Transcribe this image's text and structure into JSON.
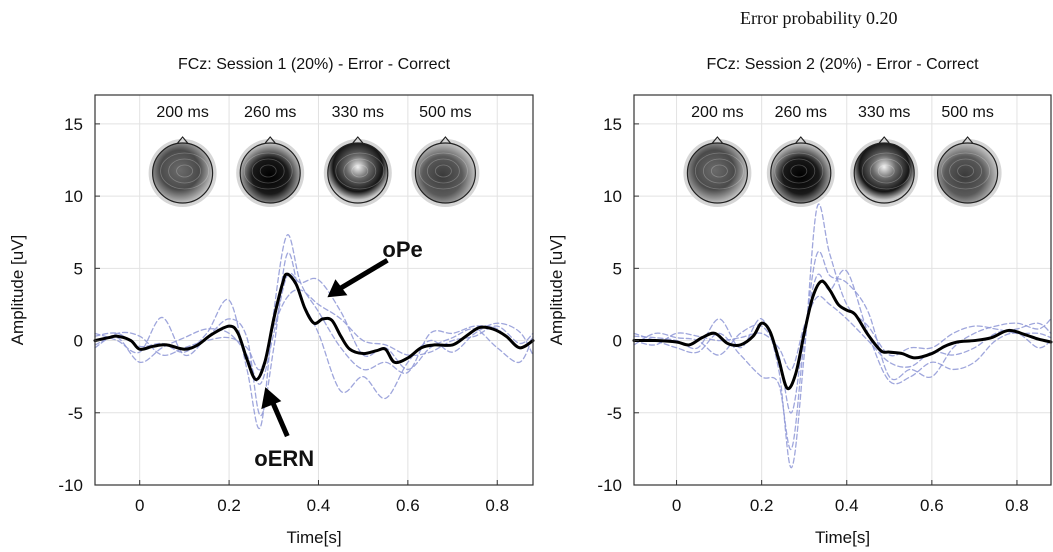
{
  "figure_title": "Error probability 0.20",
  "chart_data": [
    {
      "type": "line",
      "title": "FCz: Session 1 (20%) - Error - Correct",
      "xlabel": "Time[s]",
      "ylabel": "Amplitude [uV]",
      "xlim": [
        -0.1,
        0.88
      ],
      "ylim": [
        -10,
        17
      ],
      "xticks": [
        0,
        0.2,
        0.4,
        0.6,
        0.8
      ],
      "xtick_labels": [
        "0",
        "0.2",
        "0.4",
        "0.6",
        "0.8"
      ],
      "yticks": [
        -10,
        -5,
        0,
        5,
        10,
        15
      ],
      "ytick_labels": [
        "-10",
        "-5",
        "0",
        "5",
        "10",
        "15"
      ],
      "grid": true,
      "topomaps": [
        {
          "label": "200 ms",
          "time": 0.2
        },
        {
          "label": "260 ms",
          "time": 0.26
        },
        {
          "label": "330 ms",
          "time": 0.33
        },
        {
          "label": "500 ms",
          "time": 0.5
        }
      ],
      "annotations": [
        {
          "text": "oPe",
          "x": 0.42,
          "y": 3
        },
        {
          "text": "oERN",
          "x": 0.29,
          "y": -3.5
        }
      ],
      "series": [
        {
          "role": "average",
          "color": "#000000",
          "dashed": false,
          "x": [
            -0.1,
            -0.07,
            -0.05,
            -0.02,
            0,
            0.03,
            0.06,
            0.1,
            0.13,
            0.16,
            0.2,
            0.22,
            0.24,
            0.26,
            0.28,
            0.3,
            0.32,
            0.33,
            0.35,
            0.37,
            0.39,
            0.41,
            0.43,
            0.45,
            0.47,
            0.5,
            0.53,
            0.55,
            0.57,
            0.6,
            0.63,
            0.66,
            0.7,
            0.73,
            0.76,
            0.79,
            0.82,
            0.85,
            0.88
          ],
          "y": [
            0,
            0.2,
            0.3,
            0,
            -0.6,
            -0.4,
            -0.3,
            -0.6,
            -0.3,
            0.4,
            1.0,
            0.5,
            -1.3,
            -2.7,
            -1.5,
            1.5,
            4.0,
            4.6,
            3.9,
            2.2,
            1.2,
            1.5,
            1.4,
            0.3,
            -0.6,
            -0.9,
            -0.7,
            -0.6,
            -1.5,
            -1.2,
            -0.5,
            -0.3,
            -0.3,
            0.3,
            0.9,
            0.8,
            0.3,
            -0.5,
            0
          ]
        },
        {
          "role": "single-session",
          "color": "#8e96d6",
          "dashed": true,
          "x": [
            -0.1,
            -0.05,
            0,
            0.05,
            0.1,
            0.15,
            0.2,
            0.24,
            0.27,
            0.3,
            0.33,
            0.36,
            0.4,
            0.45,
            0.5,
            0.55,
            0.6,
            0.65,
            0.7,
            0.75,
            0.8,
            0.85,
            0.88
          ],
          "y": [
            0.3,
            0.5,
            -0.4,
            -0.2,
            -0.8,
            0.5,
            2.8,
            -2.0,
            -6.0,
            2.0,
            7.3,
            4.0,
            2.0,
            -0.5,
            -2.0,
            -1.5,
            -2.2,
            0.5,
            0.5,
            1.0,
            0.8,
            -0.5,
            0.2
          ]
        },
        {
          "role": "single-session",
          "color": "#8e96d6",
          "dashed": true,
          "x": [
            -0.1,
            -0.05,
            0,
            0.05,
            0.1,
            0.15,
            0.2,
            0.24,
            0.27,
            0.3,
            0.33,
            0.36,
            0.4,
            0.45,
            0.5,
            0.55,
            0.6,
            0.65,
            0.7,
            0.75,
            0.8,
            0.85,
            0.88
          ],
          "y": [
            -0.3,
            0.2,
            -1.5,
            -0.5,
            0.2,
            0.8,
            0.5,
            -1.0,
            -3.0,
            0.5,
            4.5,
            4.0,
            4.2,
            2.0,
            -1.0,
            -0.5,
            -2.0,
            -0.5,
            0.2,
            0.8,
            -0.5,
            -1.5,
            0.3
          ]
        },
        {
          "role": "single-session",
          "color": "#8e96d6",
          "dashed": true,
          "x": [
            -0.1,
            -0.05,
            0,
            0.05,
            0.1,
            0.15,
            0.2,
            0.24,
            0.27,
            0.3,
            0.33,
            0.36,
            0.4,
            0.45,
            0.5,
            0.55,
            0.6,
            0.65,
            0.7,
            0.75,
            0.8,
            0.85,
            0.88
          ],
          "y": [
            0.5,
            0.0,
            -0.8,
            1.6,
            -1.0,
            0.2,
            1.5,
            0.2,
            -5.2,
            -0.5,
            6.0,
            3.0,
            0.5,
            -3.5,
            -2.5,
            -4.0,
            -1.5,
            0.0,
            -0.8,
            0.5,
            1.2,
            0.6,
            -1.0
          ]
        },
        {
          "role": "single-session",
          "color": "#8e96d6",
          "dashed": true,
          "x": [
            -0.1,
            -0.05,
            0,
            0.05,
            0.1,
            0.15,
            0.2,
            0.24,
            0.27,
            0.3,
            0.33,
            0.36,
            0.4,
            0.45,
            0.5,
            0.55,
            0.6,
            0.65,
            0.7,
            0.75,
            0.8,
            0.85,
            0.88
          ],
          "y": [
            -0.5,
            0.5,
            0.3,
            -1.0,
            -0.5,
            0.0,
            0.2,
            -0.5,
            -2.0,
            1.0,
            3.0,
            3.5,
            2.5,
            1.5,
            0.0,
            -0.3,
            -1.0,
            -0.8,
            0.0,
            0.3,
            1.0,
            -0.2,
            0.5
          ]
        }
      ]
    },
    {
      "type": "line",
      "title": "FCz: Session 2 (20%) - Error - Correct",
      "xlabel": "Time[s]",
      "ylabel": "Amplitude [uV]",
      "xlim": [
        -0.1,
        0.88
      ],
      "ylim": [
        -10,
        17
      ],
      "xticks": [
        0,
        0.2,
        0.4,
        0.6,
        0.8
      ],
      "xtick_labels": [
        "0",
        "0.2",
        "0.4",
        "0.6",
        "0.8"
      ],
      "yticks": [
        -10,
        -5,
        0,
        5,
        10,
        15
      ],
      "ytick_labels": [
        "-10",
        "-5",
        "0",
        "5",
        "10",
        "15"
      ],
      "grid": true,
      "topomaps": [
        {
          "label": "200 ms",
          "time": 0.2
        },
        {
          "label": "260 ms",
          "time": 0.26
        },
        {
          "label": "330 ms",
          "time": 0.33
        },
        {
          "label": "500 ms",
          "time": 0.5
        }
      ],
      "annotations": [],
      "series": [
        {
          "role": "average",
          "color": "#000000",
          "dashed": false,
          "x": [
            -0.1,
            -0.05,
            0,
            0.03,
            0.06,
            0.09,
            0.12,
            0.15,
            0.18,
            0.2,
            0.22,
            0.24,
            0.26,
            0.28,
            0.3,
            0.32,
            0.34,
            0.36,
            0.38,
            0.4,
            0.42,
            0.45,
            0.48,
            0.5,
            0.53,
            0.56,
            0.6,
            0.63,
            0.66,
            0.7,
            0.74,
            0.78,
            0.82,
            0.85,
            0.88
          ],
          "y": [
            0,
            0,
            -0.1,
            -0.3,
            0.2,
            0.5,
            -0.2,
            -0.3,
            0.3,
            1.2,
            0.6,
            -1.3,
            -3.3,
            -2.3,
            0.5,
            3.0,
            4.1,
            3.5,
            2.5,
            2.1,
            1.8,
            0.4,
            -0.7,
            -0.8,
            -0.9,
            -1.2,
            -0.9,
            -0.4,
            -0.1,
            0.0,
            0.2,
            0.7,
            0.4,
            0.1,
            -0.1
          ]
        },
        {
          "role": "single-session",
          "color": "#8e96d6",
          "dashed": true,
          "x": [
            -0.1,
            -0.05,
            0,
            0.05,
            0.1,
            0.15,
            0.2,
            0.24,
            0.27,
            0.3,
            0.33,
            0.36,
            0.4,
            0.45,
            0.5,
            0.55,
            0.6,
            0.65,
            0.7,
            0.75,
            0.8,
            0.85,
            0.88
          ],
          "y": [
            0.3,
            0.2,
            0.0,
            -0.5,
            1.5,
            -0.5,
            1.5,
            -2.0,
            -8.8,
            -1.0,
            9.2,
            6.0,
            2.5,
            1.0,
            -1.0,
            -0.5,
            -0.5,
            0.5,
            1.0,
            0.8,
            0.5,
            0.5,
            0.2
          ]
        },
        {
          "role": "single-session",
          "color": "#8e96d6",
          "dashed": true,
          "x": [
            -0.1,
            -0.05,
            0,
            0.05,
            0.1,
            0.15,
            0.2,
            0.24,
            0.27,
            0.3,
            0.33,
            0.36,
            0.4,
            0.45,
            0.5,
            0.55,
            0.6,
            0.65,
            0.7,
            0.75,
            0.8,
            0.85,
            0.88
          ],
          "y": [
            0.5,
            0.0,
            -0.5,
            -0.8,
            0.5,
            -1.0,
            -2.5,
            -3.0,
            -7.5,
            0.0,
            6.0,
            4.5,
            4.0,
            2.0,
            -2.5,
            -2.0,
            -2.5,
            -0.5,
            0.5,
            1.0,
            1.2,
            0.8,
            1.5
          ]
        },
        {
          "role": "single-session",
          "color": "#8e96d6",
          "dashed": true,
          "x": [
            -0.1,
            -0.05,
            0,
            0.05,
            0.1,
            0.15,
            0.2,
            0.24,
            0.27,
            0.3,
            0.33,
            0.36,
            0.4,
            0.45,
            0.5,
            0.55,
            0.6,
            0.65,
            0.7,
            0.75,
            0.8,
            0.85,
            0.88
          ],
          "y": [
            -0.3,
            0.5,
            0.2,
            0.0,
            -1.0,
            0.5,
            1.0,
            -1.0,
            -5.0,
            0.5,
            4.5,
            3.5,
            4.8,
            0.5,
            -2.8,
            -2.5,
            -1.5,
            -2.0,
            -1.5,
            0.0,
            0.5,
            -0.5,
            0.0
          ]
        },
        {
          "role": "single-session",
          "color": "#8e96d6",
          "dashed": true,
          "x": [
            -0.1,
            -0.05,
            0,
            0.05,
            0.1,
            0.15,
            0.2,
            0.24,
            0.27,
            0.3,
            0.33,
            0.36,
            0.4,
            0.45,
            0.5,
            0.55,
            0.6,
            0.65,
            0.7,
            0.75,
            0.8,
            0.85,
            0.88
          ],
          "y": [
            0.0,
            -0.3,
            0.5,
            0.3,
            0.0,
            0.2,
            0.5,
            -0.5,
            -2.0,
            1.0,
            3.0,
            2.5,
            1.5,
            0.0,
            -1.5,
            -1.8,
            -0.8,
            -1.0,
            -0.5,
            0.5,
            0.8,
            1.2,
            0.5
          ]
        }
      ]
    }
  ]
}
